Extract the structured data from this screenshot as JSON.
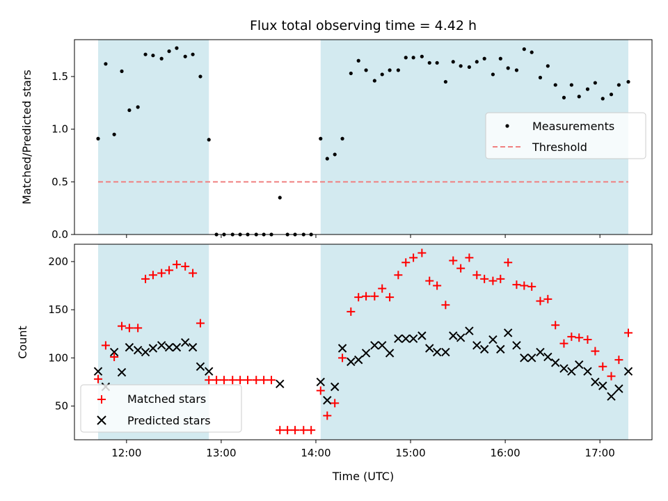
{
  "title": "Flux total observing time = 4.42 h",
  "colors": {
    "shade": "#d3eaf0",
    "measurement": "#000000",
    "threshold": "#f08080",
    "matched": "#ff0000",
    "predicted": "#000000"
  },
  "chart_data": [
    {
      "type": "scatter",
      "ylabel": "Matched/Predicted stars",
      "ylim": [
        0,
        1.85
      ],
      "yticks": [
        0,
        0.5,
        1.0,
        1.5
      ],
      "ytick_labels": [
        "0.0",
        "0.5",
        "1.0",
        "1.5"
      ],
      "xlim": [
        11.45,
        17.55
      ],
      "shaded_intervals": [
        [
          11.7,
          12.87
        ],
        [
          14.05,
          17.3
        ]
      ],
      "threshold": 0.5,
      "legend": {
        "placement": "right",
        "entries": [
          "Measurements",
          "Threshold"
        ]
      },
      "series": [
        {
          "name": "Measurements",
          "x": [
            11.7,
            11.78,
            11.87,
            11.95,
            12.03,
            12.12,
            12.2,
            12.28,
            12.37,
            12.45,
            12.53,
            12.62,
            12.7,
            12.78,
            12.87,
            12.95,
            13.03,
            13.12,
            13.2,
            13.28,
            13.37,
            13.45,
            13.53,
            13.62,
            13.7,
            13.78,
            13.87,
            13.95,
            14.05,
            14.12,
            14.2,
            14.28,
            14.37,
            14.45,
            14.53,
            14.62,
            14.7,
            14.78,
            14.87,
            14.95,
            15.03,
            15.12,
            15.2,
            15.28,
            15.37,
            15.45,
            15.53,
            15.62,
            15.7,
            15.78,
            15.87,
            15.95,
            16.03,
            16.12,
            16.2,
            16.28,
            16.37,
            16.45,
            16.53,
            16.62,
            16.7,
            16.78,
            16.87,
            16.95,
            17.03,
            17.12,
            17.2,
            17.3
          ],
          "y": [
            0.91,
            1.62,
            0.95,
            1.55,
            1.18,
            1.21,
            1.71,
            1.7,
            1.67,
            1.74,
            1.77,
            1.69,
            1.71,
            1.5,
            0.9,
            0,
            0,
            0,
            0,
            0,
            0,
            0,
            0,
            0.35,
            0,
            0,
            0,
            0,
            0.91,
            0.72,
            0.76,
            0.91,
            1.53,
            1.65,
            1.56,
            1.46,
            1.52,
            1.56,
            1.56,
            1.68,
            1.68,
            1.69,
            1.63,
            1.63,
            1.45,
            1.64,
            1.6,
            1.59,
            1.64,
            1.67,
            1.52,
            1.67,
            1.58,
            1.56,
            1.76,
            1.73,
            1.49,
            1.6,
            1.42,
            1.3,
            1.42,
            1.31,
            1.38,
            1.44,
            1.29,
            1.33,
            1.42,
            1.45
          ]
        }
      ]
    },
    {
      "type": "scatter",
      "xlabel": "Time (UTC)",
      "ylabel": "Count",
      "ylim": [
        15,
        218
      ],
      "yticks": [
        50,
        100,
        150,
        200
      ],
      "ytick_labels": [
        "50",
        "100",
        "150",
        "200"
      ],
      "xlim": [
        11.45,
        17.55
      ],
      "xticks": [
        12,
        13,
        14,
        15,
        16,
        17
      ],
      "xtick_labels": [
        "12:00",
        "13:00",
        "14:00",
        "15:00",
        "16:00",
        "17:00"
      ],
      "shaded_intervals": [
        [
          11.7,
          12.87
        ],
        [
          14.05,
          17.3
        ]
      ],
      "legend": {
        "placement": "lower-left",
        "entries": [
          "Matched stars",
          "Predicted stars"
        ]
      },
      "series": [
        {
          "name": "Matched stars",
          "x": [
            11.7,
            11.78,
            11.87,
            11.95,
            12.03,
            12.12,
            12.2,
            12.28,
            12.37,
            12.45,
            12.53,
            12.62,
            12.7,
            12.78,
            12.87,
            12.95,
            13.03,
            13.12,
            13.2,
            13.28,
            13.37,
            13.45,
            13.53,
            13.62,
            13.7,
            13.78,
            13.87,
            13.95,
            14.05,
            14.12,
            14.2,
            14.28,
            14.37,
            14.45,
            14.53,
            14.62,
            14.7,
            14.78,
            14.87,
            14.95,
            15.03,
            15.12,
            15.2,
            15.28,
            15.37,
            15.45,
            15.53,
            15.62,
            15.7,
            15.78,
            15.87,
            15.95,
            16.03,
            16.12,
            16.2,
            16.28,
            16.37,
            16.45,
            16.53,
            16.62,
            16.7,
            16.78,
            16.87,
            16.95,
            17.03,
            17.12,
            17.2,
            17.3
          ],
          "y": [
            78,
            113,
            101,
            133,
            131,
            131,
            182,
            186,
            188,
            191,
            197,
            195,
            188,
            136,
            77,
            77,
            77,
            77,
            77,
            77,
            77,
            77,
            77,
            25,
            25,
            25,
            25,
            25,
            66,
            40,
            53,
            100,
            148,
            163,
            164,
            164,
            172,
            163,
            186,
            199,
            204,
            209,
            180,
            175,
            155,
            201,
            193,
            204,
            186,
            182,
            180,
            182,
            199,
            176,
            175,
            174,
            159,
            161,
            134,
            115,
            122,
            121,
            119,
            107,
            91,
            81,
            98,
            126
          ]
        },
        {
          "name": "Predicted stars",
          "x": [
            11.7,
            11.78,
            11.87,
            11.95,
            12.03,
            12.12,
            12.2,
            12.28,
            12.37,
            12.45,
            12.53,
            12.62,
            12.7,
            12.78,
            12.87,
            13.62,
            14.05,
            14.12,
            14.2,
            14.28,
            14.37,
            14.45,
            14.53,
            14.62,
            14.7,
            14.78,
            14.87,
            14.95,
            15.03,
            15.12,
            15.2,
            15.28,
            15.37,
            15.45,
            15.53,
            15.62,
            15.7,
            15.78,
            15.87,
            15.95,
            16.03,
            16.12,
            16.2,
            16.28,
            16.37,
            16.45,
            16.53,
            16.62,
            16.7,
            16.78,
            16.87,
            16.95,
            17.03,
            17.12,
            17.2,
            17.3
          ],
          "y": [
            86,
            70,
            106,
            85,
            111,
            108,
            106,
            110,
            113,
            111,
            111,
            116,
            111,
            91,
            86,
            73,
            75,
            56,
            70,
            110,
            96,
            98,
            105,
            113,
            113,
            105,
            120,
            120,
            120,
            123,
            110,
            106,
            106,
            123,
            121,
            128,
            113,
            109,
            119,
            109,
            126,
            113,
            100,
            100,
            106,
            101,
            95,
            89,
            86,
            93,
            86,
            75,
            71,
            60,
            68,
            86
          ]
        }
      ]
    }
  ]
}
